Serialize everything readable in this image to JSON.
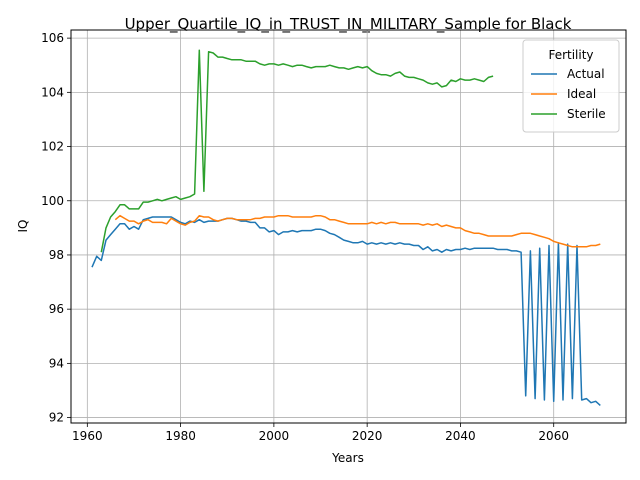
{
  "chart_data": {
    "type": "line",
    "title": "Upper_Quartile_IQ_in_TRUST_IN_MILITARY_Sample for Black",
    "xlabel": "Years",
    "ylabel": "IQ",
    "xlim": [
      1956.5,
      2075.5
    ],
    "ylim": [
      91.8,
      106.3
    ],
    "xticks": [
      1960,
      1980,
      2000,
      2020,
      2040,
      2060
    ],
    "yticks": [
      92,
      94,
      96,
      98,
      100,
      102,
      104,
      106
    ],
    "grid": true,
    "legend": {
      "title": "Fertility",
      "placement": "top-right"
    },
    "series": [
      {
        "name": "Actual",
        "color": "#1f77b4",
        "x": [
          1961,
          1962,
          1963,
          1964,
          1965,
          1966,
          1967,
          1968,
          1969,
          1970,
          1971,
          1972,
          1973,
          1974,
          1975,
          1976,
          1977,
          1978,
          1979,
          1980,
          1981,
          1982,
          1983,
          1984,
          1985,
          1986,
          1987,
          1988,
          1989,
          1990,
          1991,
          1992,
          1993,
          1994,
          1995,
          1996,
          1997,
          1998,
          1999,
          2000,
          2001,
          2002,
          2003,
          2004,
          2005,
          2006,
          2007,
          2008,
          2009,
          2010,
          2011,
          2012,
          2013,
          2014,
          2015,
          2016,
          2017,
          2018,
          2019,
          2020,
          2021,
          2022,
          2023,
          2024,
          2025,
          2026,
          2027,
          2028,
          2029,
          2030,
          2031,
          2032,
          2033,
          2034,
          2035,
          2036,
          2037,
          2038,
          2039,
          2040,
          2041,
          2042,
          2043,
          2044,
          2045,
          2046,
          2047,
          2048,
          2049,
          2050,
          2051,
          2052,
          2053,
          2054,
          2055,
          2056,
          2057,
          2058,
          2059,
          2060,
          2061,
          2062,
          2063,
          2064,
          2065,
          2066,
          2067,
          2068,
          2069,
          2070
        ],
        "values": [
          97.55,
          97.95,
          97.8,
          98.55,
          98.75,
          98.95,
          99.15,
          99.15,
          98.95,
          99.05,
          98.95,
          99.3,
          99.35,
          99.4,
          99.4,
          99.4,
          99.4,
          99.4,
          99.3,
          99.2,
          99.15,
          99.25,
          99.2,
          99.3,
          99.2,
          99.25,
          99.25,
          99.25,
          99.3,
          99.35,
          99.35,
          99.3,
          99.25,
          99.25,
          99.2,
          99.2,
          99.0,
          99.0,
          98.85,
          98.9,
          98.75,
          98.85,
          98.85,
          98.9,
          98.85,
          98.9,
          98.9,
          98.9,
          98.95,
          98.95,
          98.9,
          98.8,
          98.75,
          98.65,
          98.55,
          98.5,
          98.45,
          98.45,
          98.5,
          98.4,
          98.45,
          98.4,
          98.45,
          98.4,
          98.45,
          98.4,
          98.45,
          98.4,
          98.4,
          98.35,
          98.35,
          98.2,
          98.3,
          98.15,
          98.2,
          98.1,
          98.2,
          98.15,
          98.2,
          98.2,
          98.25,
          98.2,
          98.25,
          98.25,
          98.25,
          98.25,
          98.25,
          98.2,
          98.2,
          98.2,
          98.15,
          98.15,
          98.1,
          92.8,
          98.15,
          92.7,
          98.25,
          92.65,
          98.35,
          92.6,
          98.45,
          92.65,
          98.4,
          92.7,
          98.35,
          92.65,
          92.7,
          92.55,
          92.6,
          92.45
        ]
      },
      {
        "name": "Ideal",
        "color": "#ff7f0e",
        "x": [
          1966,
          1967,
          1968,
          1969,
          1970,
          1971,
          1972,
          1973,
          1974,
          1975,
          1976,
          1977,
          1978,
          1979,
          1980,
          1981,
          1982,
          1983,
          1984,
          1985,
          1986,
          1987,
          1988,
          1989,
          1990,
          1991,
          1992,
          1993,
          1994,
          1995,
          1996,
          1997,
          1998,
          1999,
          2000,
          2001,
          2002,
          2003,
          2004,
          2005,
          2006,
          2007,
          2008,
          2009,
          2010,
          2011,
          2012,
          2013,
          2014,
          2015,
          2016,
          2017,
          2018,
          2019,
          2020,
          2021,
          2022,
          2023,
          2024,
          2025,
          2026,
          2027,
          2028,
          2029,
          2030,
          2031,
          2032,
          2033,
          2034,
          2035,
          2036,
          2037,
          2038,
          2039,
          2040,
          2041,
          2042,
          2043,
          2044,
          2045,
          2046,
          2047,
          2048,
          2049,
          2050,
          2051,
          2052,
          2053,
          2054,
          2055,
          2056,
          2057,
          2058,
          2059,
          2060,
          2061,
          2062,
          2063,
          2064,
          2065,
          2066,
          2067,
          2068,
          2069,
          2070
        ],
        "values": [
          99.3,
          99.45,
          99.35,
          99.25,
          99.25,
          99.15,
          99.25,
          99.3,
          99.2,
          99.2,
          99.2,
          99.15,
          99.35,
          99.25,
          99.15,
          99.1,
          99.2,
          99.25,
          99.45,
          99.4,
          99.4,
          99.3,
          99.25,
          99.3,
          99.35,
          99.35,
          99.3,
          99.3,
          99.3,
          99.3,
          99.35,
          99.35,
          99.4,
          99.4,
          99.4,
          99.45,
          99.45,
          99.45,
          99.4,
          99.4,
          99.4,
          99.4,
          99.4,
          99.45,
          99.45,
          99.4,
          99.3,
          99.3,
          99.25,
          99.2,
          99.15,
          99.15,
          99.15,
          99.15,
          99.15,
          99.2,
          99.15,
          99.2,
          99.15,
          99.2,
          99.2,
          99.15,
          99.15,
          99.15,
          99.15,
          99.15,
          99.1,
          99.15,
          99.1,
          99.15,
          99.05,
          99.1,
          99.05,
          99.0,
          99.0,
          98.9,
          98.85,
          98.8,
          98.8,
          98.75,
          98.7,
          98.7,
          98.7,
          98.7,
          98.7,
          98.7,
          98.75,
          98.8,
          98.8,
          98.8,
          98.75,
          98.7,
          98.65,
          98.6,
          98.5,
          98.45,
          98.4,
          98.35,
          98.3,
          98.3,
          98.3,
          98.3,
          98.35,
          98.35,
          98.4
        ]
      },
      {
        "name": "Sterile",
        "color": "#2ca02c",
        "x": [
          1963,
          1964,
          1965,
          1966,
          1967,
          1968,
          1969,
          1970,
          1971,
          1972,
          1973,
          1974,
          1975,
          1976,
          1977,
          1978,
          1979,
          1980,
          1981,
          1982,
          1983,
          1984,
          1985,
          1986,
          1987,
          1988,
          1989,
          1990,
          1991,
          1992,
          1993,
          1994,
          1995,
          1996,
          1997,
          1998,
          1999,
          2000,
          2001,
          2002,
          2003,
          2004,
          2005,
          2006,
          2007,
          2008,
          2009,
          2010,
          2011,
          2012,
          2013,
          2014,
          2015,
          2016,
          2017,
          2018,
          2019,
          2020,
          2021,
          2022,
          2023,
          2024,
          2025,
          2026,
          2027,
          2028,
          2029,
          2030,
          2031,
          2032,
          2033,
          2034,
          2035,
          2036,
          2037,
          2038,
          2039,
          2040,
          2041,
          2042,
          2043,
          2044,
          2045,
          2046,
          2047
        ],
        "values": [
          98.1,
          99.0,
          99.4,
          99.6,
          99.85,
          99.85,
          99.7,
          99.7,
          99.7,
          99.95,
          99.95,
          100.0,
          100.05,
          100.0,
          100.05,
          100.1,
          100.15,
          100.05,
          100.1,
          100.15,
          100.25,
          105.55,
          100.35,
          105.5,
          105.45,
          105.3,
          105.3,
          105.25,
          105.2,
          105.2,
          105.2,
          105.15,
          105.15,
          105.15,
          105.05,
          105.0,
          105.05,
          105.05,
          105.0,
          105.05,
          105.0,
          104.95,
          105.0,
          105.0,
          104.95,
          104.9,
          104.95,
          104.95,
          104.95,
          105.0,
          104.95,
          104.9,
          104.9,
          104.85,
          104.9,
          104.95,
          104.9,
          104.95,
          104.8,
          104.7,
          104.65,
          104.65,
          104.6,
          104.7,
          104.75,
          104.6,
          104.55,
          104.55,
          104.5,
          104.45,
          104.35,
          104.3,
          104.35,
          104.2,
          104.25,
          104.45,
          104.4,
          104.5,
          104.45,
          104.45,
          104.5,
          104.45,
          104.4,
          104.55,
          104.6
        ]
      }
    ]
  }
}
